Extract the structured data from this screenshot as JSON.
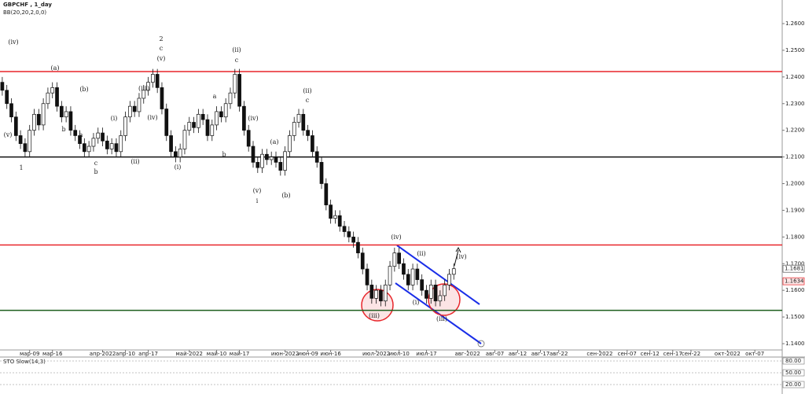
{
  "chart_data": [
    {
      "type": "candlestick",
      "title": "GBPCHF , 1_day",
      "subtitle": "BB(20,20,2,0,0)",
      "xlim": [
        -0.5,
        171
      ],
      "ylim": [
        1.13764,
        1.26885
      ],
      "yticks": [
        {
          "value": 1.26,
          "label": "1.2600"
        },
        {
          "value": 1.25,
          "label": "1.2500"
        },
        {
          "value": 1.24,
          "label": "1.2400"
        },
        {
          "value": 1.23,
          "label": "1.2300"
        },
        {
          "value": 1.22,
          "label": "1.2200"
        },
        {
          "value": 1.21,
          "label": "1.2100"
        },
        {
          "value": 1.2,
          "label": "1.2000"
        },
        {
          "value": 1.19,
          "label": "1.1900"
        },
        {
          "value": 1.18,
          "label": "1.1800"
        },
        {
          "value": 1.17,
          "label": "1.1700"
        },
        {
          "value": 1.16,
          "label": "1.1600"
        },
        {
          "value": 1.15,
          "label": "1.1500"
        },
        {
          "value": 1.14,
          "label": "1.1400"
        }
      ],
      "xticks": [
        {
          "value": 6,
          "label": "мар-09"
        },
        {
          "value": 11,
          "label": "мар-16"
        },
        {
          "value": 22,
          "label": "апр-2022"
        },
        {
          "value": 27,
          "label": "апр-10"
        },
        {
          "value": 32,
          "label": "апр-17"
        },
        {
          "value": 41,
          "label": "май-2022"
        },
        {
          "value": 47,
          "label": "май-10"
        },
        {
          "value": 52,
          "label": "май-17"
        },
        {
          "value": 62,
          "label": "июн-2022"
        },
        {
          "value": 67,
          "label": "июн-09"
        },
        {
          "value": 72,
          "label": "июн-16"
        },
        {
          "value": 82,
          "label": "июл-2022"
        },
        {
          "value": 87,
          "label": "июл-10"
        },
        {
          "value": 93,
          "label": "июл-17"
        },
        {
          "value": 102,
          "label": "авг-2022"
        },
        {
          "value": 108,
          "label": "авг-07"
        },
        {
          "value": 113,
          "label": "авг-12"
        },
        {
          "value": 118,
          "label": "авг-17"
        },
        {
          "value": 122,
          "label": "авг-22"
        },
        {
          "value": 131,
          "label": "сен-2022"
        },
        {
          "value": 137,
          "label": "сен-07"
        },
        {
          "value": 142,
          "label": "сен-12"
        },
        {
          "value": 147,
          "label": "сен-17"
        },
        {
          "value": 151,
          "label": "сен-22"
        },
        {
          "value": 159,
          "label": "окт-2022"
        },
        {
          "value": 165,
          "label": "окт-07"
        }
      ],
      "open": [
        1.238,
        1.235,
        1.23,
        1.225,
        1.218,
        1.215,
        1.212,
        1.22,
        1.226,
        1.222,
        1.23,
        1.234,
        1.236,
        1.229,
        1.225,
        1.227,
        1.22,
        1.218,
        1.215,
        1.212,
        1.214,
        1.217,
        1.219,
        1.216,
        1.213,
        1.215,
        1.212,
        1.218,
        1.225,
        1.229,
        1.227,
        1.232,
        1.235,
        1.238,
        1.241,
        1.236,
        1.228,
        1.218,
        1.212,
        1.21,
        1.213,
        1.22,
        1.223,
        1.221,
        1.226,
        1.224,
        1.218,
        1.222,
        1.227,
        1.225,
        1.23,
        1.234,
        1.241,
        1.229,
        1.22,
        1.214,
        1.208,
        1.206,
        1.211,
        1.209,
        1.21,
        1.208,
        1.205,
        1.212,
        1.218,
        1.223,
        1.226,
        1.22,
        1.218,
        1.212,
        1.208,
        1.2,
        1.192,
        1.187,
        1.188,
        1.184,
        1.182,
        1.18,
        1.178,
        1.174,
        1.168,
        1.162,
        1.157,
        1.16,
        1.156,
        1.162,
        1.169,
        1.174,
        1.17,
        1.166,
        1.162,
        1.168,
        1.164,
        1.16,
        1.157,
        1.162,
        1.156,
        1.158,
        1.162,
        1.166
      ],
      "high": [
        1.24,
        1.237,
        1.232,
        1.227,
        1.22,
        1.217,
        1.222,
        1.228,
        1.228,
        1.232,
        1.236,
        1.238,
        1.238,
        1.231,
        1.229,
        1.229,
        1.222,
        1.22,
        1.217,
        1.216,
        1.219,
        1.221,
        1.221,
        1.218,
        1.217,
        1.217,
        1.22,
        1.227,
        1.231,
        1.231,
        1.234,
        1.237,
        1.24,
        1.243,
        1.243,
        1.238,
        1.23,
        1.22,
        1.214,
        1.215,
        1.222,
        1.225,
        1.225,
        1.228,
        1.228,
        1.226,
        1.224,
        1.229,
        1.229,
        1.232,
        1.236,
        1.243,
        1.243,
        1.231,
        1.222,
        1.216,
        1.21,
        1.213,
        1.213,
        1.212,
        1.212,
        1.21,
        1.214,
        1.22,
        1.225,
        1.228,
        1.228,
        1.222,
        1.22,
        1.214,
        1.21,
        1.202,
        1.194,
        1.19,
        1.19,
        1.186,
        1.184,
        1.182,
        1.18,
        1.176,
        1.17,
        1.164,
        1.162,
        1.162,
        1.164,
        1.171,
        1.176,
        1.176,
        1.172,
        1.168,
        1.17,
        1.17,
        1.166,
        1.162,
        1.164,
        1.164,
        1.16,
        1.164,
        1.168,
        1.1701
      ],
      "low": [
        1.233,
        1.228,
        1.223,
        1.216,
        1.213,
        1.21,
        1.21,
        1.218,
        1.22,
        1.22,
        1.228,
        1.232,
        1.227,
        1.223,
        1.223,
        1.218,
        1.216,
        1.213,
        1.21,
        1.21,
        1.212,
        1.215,
        1.214,
        1.211,
        1.211,
        1.21,
        1.21,
        1.216,
        1.223,
        1.225,
        1.225,
        1.23,
        1.233,
        1.236,
        1.234,
        1.226,
        1.216,
        1.21,
        1.208,
        1.208,
        1.211,
        1.218,
        1.219,
        1.219,
        1.222,
        1.216,
        1.216,
        1.22,
        1.223,
        1.223,
        1.228,
        1.232,
        1.227,
        1.218,
        1.212,
        1.206,
        1.204,
        1.204,
        1.207,
        1.207,
        1.206,
        1.203,
        1.203,
        1.21,
        1.216,
        1.221,
        1.218,
        1.216,
        1.21,
        1.206,
        1.198,
        1.19,
        1.185,
        1.185,
        1.182,
        1.18,
        1.178,
        1.176,
        1.172,
        1.166,
        1.16,
        1.155,
        1.155,
        1.154,
        1.154,
        1.16,
        1.167,
        1.168,
        1.164,
        1.16,
        1.16,
        1.162,
        1.158,
        1.155,
        1.155,
        1.154,
        1.154,
        1.156,
        1.16,
        1.164
      ],
      "close": [
        1.235,
        1.23,
        1.225,
        1.218,
        1.215,
        1.212,
        1.22,
        1.226,
        1.222,
        1.23,
        1.234,
        1.236,
        1.229,
        1.225,
        1.227,
        1.22,
        1.218,
        1.215,
        1.212,
        1.214,
        1.217,
        1.219,
        1.216,
        1.213,
        1.215,
        1.212,
        1.218,
        1.225,
        1.229,
        1.227,
        1.232,
        1.235,
        1.238,
        1.241,
        1.236,
        1.228,
        1.218,
        1.212,
        1.21,
        1.213,
        1.22,
        1.223,
        1.221,
        1.226,
        1.224,
        1.218,
        1.222,
        1.227,
        1.225,
        1.23,
        1.234,
        1.241,
        1.229,
        1.22,
        1.214,
        1.208,
        1.206,
        1.211,
        1.209,
        1.21,
        1.208,
        1.205,
        1.212,
        1.218,
        1.223,
        1.226,
        1.22,
        1.218,
        1.212,
        1.208,
        1.2,
        1.192,
        1.187,
        1.188,
        1.184,
        1.182,
        1.18,
        1.178,
        1.174,
        1.168,
        1.162,
        1.157,
        1.16,
        1.156,
        1.162,
        1.169,
        1.174,
        1.17,
        1.166,
        1.162,
        1.168,
        1.164,
        1.16,
        1.157,
        1.162,
        1.156,
        1.158,
        1.162,
        1.166,
        1.1681
      ],
      "levels": [
        {
          "value": 1.242,
          "color": "#e8252a"
        },
        {
          "value": 1.21,
          "color": "#111111"
        },
        {
          "value": 1.177,
          "color": "#e8252a"
        },
        {
          "value": 1.1525,
          "color": "#1e5e1e"
        }
      ],
      "price_tags": [
        1.1681,
        1.1634
      ],
      "annotations": [
        "(iv)",
        "(v)",
        "1",
        "(a)",
        "(b)",
        "b",
        "a",
        "c",
        "b",
        "(i)",
        "(ii)",
        "(iii)",
        "(iv)",
        "2",
        "c",
        "(v)",
        "(i)",
        "a",
        "b",
        "c",
        "(ii)",
        "(iv)",
        "(a)",
        "(b)",
        "(v)",
        "i",
        "(ii)",
        "c",
        "(iv)",
        "(ii)",
        "(i)",
        "(iii)",
        "(iii)",
        "(iv)"
      ]
    },
    {
      "type": "line",
      "title": "STO Slow(14,3)",
      "ylim": [
        4,
        88
      ],
      "yticks": [
        {
          "value": 80,
          "label": "80.00"
        },
        {
          "value": 50,
          "label": "50.00"
        },
        {
          "value": 20,
          "label": "20.00"
        }
      ]
    }
  ]
}
